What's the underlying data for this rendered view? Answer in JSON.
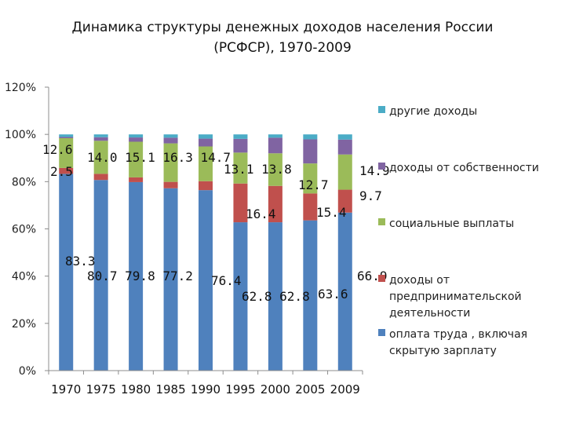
{
  "chart_data": {
    "type": "bar",
    "stacked": true,
    "title_line1": "Динамика структуры денежных доходов населения России",
    "title_line2": "(РСФСР), 1970-2009",
    "categories": [
      "1970",
      "1975",
      "1980",
      "1985",
      "1990",
      "1995",
      "2000",
      "2005",
      "2009"
    ],
    "yticks": [
      "0%",
      "20%",
      "40%",
      "60%",
      "80%",
      "100%",
      "120%"
    ],
    "ylim": [
      0,
      120
    ],
    "legend_position": "right",
    "series": [
      {
        "name": "оплата труда , включая скрытую зарплату",
        "legend_lines": [
          "оплата труда , включая",
          "скрытую зарплату"
        ],
        "color": "#4F81BD",
        "values": [
          83.3,
          80.7,
          79.8,
          77.2,
          76.4,
          62.8,
          62.8,
          63.6,
          66.9
        ]
      },
      {
        "name": "доходы от предпринимательской деятельности",
        "legend_lines": [
          "доходы от",
          "предпринимательской",
          "деятельности"
        ],
        "color": "#C0504D",
        "values": [
          2.5,
          2.6,
          2.0,
          2.7,
          3.8,
          16.4,
          15.4,
          11.4,
          9.7
        ]
      },
      {
        "name": "социальные выплаты",
        "legend_lines": [
          "социальные выплаты"
        ],
        "color": "#9BBB59",
        "values": [
          12.6,
          14.0,
          15.1,
          16.3,
          14.7,
          13.1,
          13.8,
          12.7,
          14.9
        ]
      },
      {
        "name": "доходы от собственности",
        "legend_lines": [
          "доходы от собственности"
        ],
        "color": "#8064A2",
        "values": [
          0.5,
          1.5,
          1.8,
          2.4,
          3.3,
          5.8,
          6.6,
          10.2,
          6.3
        ]
      },
      {
        "name": "другие доходы",
        "legend_lines": [
          "другие доходы"
        ],
        "color": "#4BACC6",
        "values": [
          1.1,
          1.2,
          1.3,
          1.4,
          1.8,
          1.9,
          1.4,
          2.1,
          2.2
        ]
      }
    ],
    "data_labels": [
      {
        "text": "83.3"
      },
      {
        "text": "2.5"
      },
      {
        "text": "12.6"
      },
      {
        "text": "80.7 79.8 77.2"
      },
      {
        "text": "14.0 15.1 16.3 14.7"
      },
      {
        "text": "76.4"
      },
      {
        "text": "13.1 13.8"
      },
      {
        "text": "62.8 62.8"
      },
      {
        "text": "16.4"
      },
      {
        "text": "63.6"
      },
      {
        "text": "15.4"
      },
      {
        "text": "12.7"
      },
      {
        "text": "66.9"
      },
      {
        "text": "9.7"
      },
      {
        "text": "14.9"
      }
    ]
  }
}
